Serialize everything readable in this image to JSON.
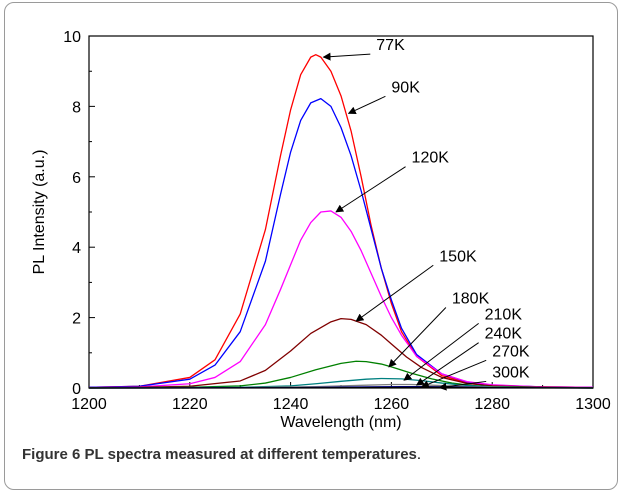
{
  "caption": {
    "label": "Figure 6",
    "text": "PL spectra measured at different temperatures",
    "trailing": "."
  },
  "chart_data": {
    "type": "line",
    "xlabel": "Wavelength (nm)",
    "ylabel": "PL Intensity (a.u.)",
    "xlim": [
      1200,
      1300
    ],
    "ylim": [
      0,
      10
    ],
    "xticks": [
      1200,
      1220,
      1240,
      1260,
      1280,
      1300
    ],
    "yticks": [
      0,
      2,
      4,
      6,
      8,
      10
    ],
    "grid": false,
    "legend": "none",
    "series": [
      {
        "name": "77K",
        "color": "#ff0000",
        "x": [
          1200,
          1210,
          1220,
          1225,
          1230,
          1235,
          1238,
          1240,
          1242,
          1244,
          1245,
          1246,
          1248,
          1250,
          1252,
          1254,
          1256,
          1258,
          1260,
          1262,
          1265,
          1270,
          1275,
          1280,
          1290,
          1300
        ],
        "y": [
          0.02,
          0.05,
          0.3,
          0.8,
          2.1,
          4.5,
          6.6,
          7.9,
          8.9,
          9.4,
          9.47,
          9.4,
          9.0,
          8.3,
          7.3,
          6.0,
          4.6,
          3.4,
          2.4,
          1.6,
          0.9,
          0.35,
          0.15,
          0.07,
          0.03,
          0.02
        ]
      },
      {
        "name": "90K",
        "color": "#0000ff",
        "x": [
          1200,
          1210,
          1220,
          1225,
          1230,
          1235,
          1238,
          1240,
          1242,
          1244,
          1246,
          1248,
          1250,
          1252,
          1254,
          1256,
          1258,
          1260,
          1262,
          1265,
          1270,
          1275,
          1280,
          1290,
          1300
        ],
        "y": [
          0.02,
          0.05,
          0.25,
          0.65,
          1.6,
          3.6,
          5.5,
          6.7,
          7.6,
          8.1,
          8.22,
          8.0,
          7.4,
          6.6,
          5.6,
          4.5,
          3.4,
          2.5,
          1.7,
          0.95,
          0.4,
          0.17,
          0.08,
          0.03,
          0.02
        ]
      },
      {
        "name": "120K",
        "color": "#ff00ff",
        "x": [
          1200,
          1210,
          1220,
          1225,
          1230,
          1235,
          1238,
          1240,
          1242,
          1244,
          1246,
          1248,
          1250,
          1252,
          1254,
          1256,
          1258,
          1260,
          1262,
          1265,
          1270,
          1275,
          1280,
          1290,
          1300
        ],
        "y": [
          0.01,
          0.03,
          0.12,
          0.3,
          0.75,
          1.8,
          2.8,
          3.5,
          4.2,
          4.7,
          5.0,
          5.03,
          4.85,
          4.45,
          3.9,
          3.25,
          2.6,
          2.0,
          1.5,
          0.9,
          0.4,
          0.18,
          0.09,
          0.03,
          0.02
        ]
      },
      {
        "name": "150K",
        "color": "#800000",
        "x": [
          1200,
          1210,
          1220,
          1230,
          1235,
          1240,
          1244,
          1248,
          1250,
          1252,
          1255,
          1258,
          1260,
          1263,
          1266,
          1270,
          1275,
          1280,
          1290,
          1300
        ],
        "y": [
          0.01,
          0.02,
          0.05,
          0.2,
          0.5,
          1.05,
          1.55,
          1.88,
          1.97,
          1.95,
          1.8,
          1.5,
          1.25,
          0.88,
          0.58,
          0.3,
          0.13,
          0.06,
          0.02,
          0.01
        ]
      },
      {
        "name": "180K",
        "color": "#008000",
        "x": [
          1200,
          1220,
          1230,
          1235,
          1240,
          1245,
          1250,
          1253,
          1255,
          1258,
          1260,
          1264,
          1268,
          1272,
          1276,
          1280,
          1290,
          1300
        ],
        "y": [
          0.0,
          0.02,
          0.06,
          0.14,
          0.3,
          0.52,
          0.7,
          0.76,
          0.75,
          0.68,
          0.6,
          0.42,
          0.26,
          0.14,
          0.07,
          0.04,
          0.01,
          0.0
        ]
      },
      {
        "name": "210K",
        "color": "#008080",
        "x": [
          1200,
          1230,
          1240,
          1245,
          1250,
          1255,
          1258,
          1262,
          1266,
          1270,
          1275,
          1280,
          1290,
          1300
        ],
        "y": [
          0.0,
          0.02,
          0.06,
          0.12,
          0.19,
          0.25,
          0.27,
          0.26,
          0.21,
          0.14,
          0.07,
          0.03,
          0.01,
          0.0
        ]
      },
      {
        "name": "240K",
        "color": "#808080",
        "x": [
          1200,
          1230,
          1245,
          1255,
          1260,
          1264,
          1268,
          1275,
          1285,
          1300
        ],
        "y": [
          0.0,
          0.01,
          0.04,
          0.08,
          0.1,
          0.1,
          0.08,
          0.04,
          0.01,
          0.0
        ]
      },
      {
        "name": "270K",
        "color": "#000080",
        "x": [
          1200,
          1240,
          1255,
          1262,
          1266,
          1272,
          1280,
          1300
        ],
        "y": [
          0.0,
          0.01,
          0.03,
          0.04,
          0.04,
          0.03,
          0.01,
          0.0
        ]
      },
      {
        "name": "300K",
        "color": "#000000",
        "x": [
          1200,
          1250,
          1262,
          1268,
          1274,
          1285,
          1300
        ],
        "y": [
          0.0,
          0.005,
          0.015,
          0.02,
          0.015,
          0.005,
          0.0
        ]
      }
    ],
    "annotations": [
      {
        "text": "77K",
        "x_text": 1257,
        "y_text": 9.6,
        "x_arrow": 1246.5,
        "y_arrow": 9.4
      },
      {
        "text": "90K",
        "x_text": 1260,
        "y_text": 8.4,
        "x_arrow": 1251.5,
        "y_arrow": 7.8
      },
      {
        "text": "120K",
        "x_text": 1264,
        "y_text": 6.4,
        "x_arrow": 1249,
        "y_arrow": 5.0
      },
      {
        "text": "150K",
        "x_text": 1269.5,
        "y_text": 3.6,
        "x_arrow": 1253,
        "y_arrow": 1.9
      },
      {
        "text": "180K",
        "x_text": 1272,
        "y_text": 2.4,
        "x_arrow": 1259.5,
        "y_arrow": 0.6
      },
      {
        "text": "210K",
        "x_text": 1278.5,
        "y_text": 1.95,
        "x_arrow": 1262.5,
        "y_arrow": 0.22
      },
      {
        "text": "240K",
        "x_text": 1278.5,
        "y_text": 1.4,
        "x_arrow": 1265,
        "y_arrow": 0.08
      },
      {
        "text": "270K",
        "x_text": 1280,
        "y_text": 0.9,
        "x_arrow": 1266,
        "y_arrow": 0.03
      },
      {
        "text": "300K",
        "x_text": 1280,
        "y_text": 0.3,
        "x_arrow": 1269.5,
        "y_arrow": 0.01
      }
    ]
  }
}
